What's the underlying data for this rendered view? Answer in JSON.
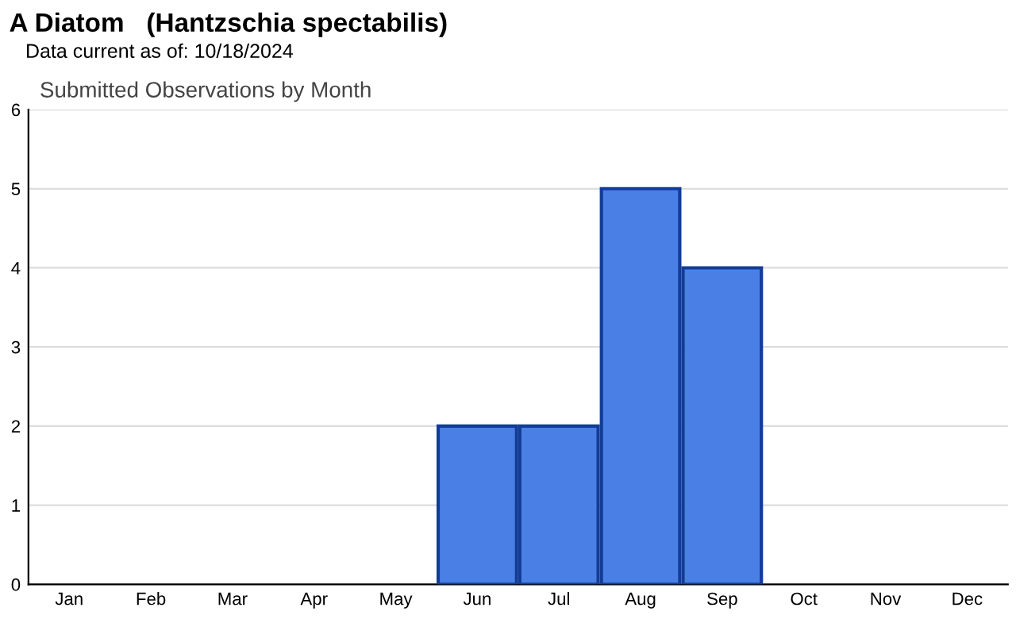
{
  "chart_data": {
    "type": "bar",
    "title": "A Diatom   (Hantzschia spectabilis)",
    "subtitle": "Data current as of: 10/18/2024",
    "annotations": [
      "Submitted Observations by Month"
    ],
    "categories": [
      "Jan",
      "Feb",
      "Mar",
      "Apr",
      "May",
      "Jun",
      "Jul",
      "Aug",
      "Sep",
      "Oct",
      "Nov",
      "Dec"
    ],
    "values": [
      0,
      0,
      0,
      0,
      0,
      2,
      2,
      5,
      4,
      0,
      0,
      0
    ],
    "color": "#4a80e6",
    "ylim": [
      0,
      6
    ],
    "yticks": [
      0,
      1,
      2,
      3,
      4,
      5,
      6
    ],
    "grid": "y",
    "legend": false
  }
}
